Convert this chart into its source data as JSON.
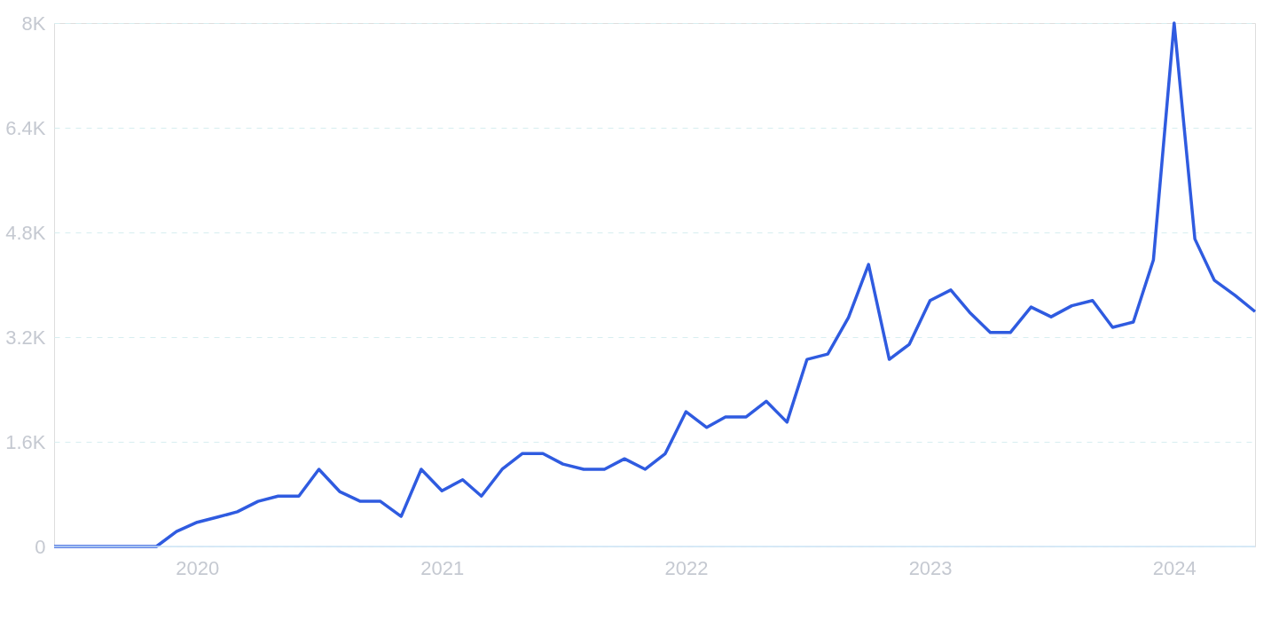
{
  "chart_data": {
    "type": "line",
    "x": [
      "2019-06",
      "2019-07",
      "2019-08",
      "2019-09",
      "2019-10",
      "2019-11",
      "2019-12",
      "2020-01",
      "2020-02",
      "2020-03",
      "2020-04",
      "2020-05",
      "2020-06",
      "2020-07",
      "2020-08",
      "2020-09",
      "2020-10",
      "2020-11",
      "2020-12",
      "2021-01",
      "2021-02",
      "2021-03",
      "2021-04",
      "2021-05",
      "2021-06",
      "2021-07",
      "2021-08",
      "2021-09",
      "2021-10",
      "2021-11",
      "2021-12",
      "2022-01",
      "2022-02",
      "2022-03",
      "2022-04",
      "2022-05",
      "2022-06",
      "2022-07",
      "2022-08",
      "2022-09",
      "2022-10",
      "2022-11",
      "2022-12",
      "2023-01",
      "2023-02",
      "2023-03",
      "2023-04",
      "2023-05",
      "2023-06",
      "2023-07",
      "2023-08",
      "2023-09",
      "2023-10",
      "2023-11",
      "2023-12",
      "2024-01",
      "2024-02",
      "2024-03",
      "2024-04",
      "2024-05"
    ],
    "series": [
      {
        "color": "#2f5be0",
        "values": [
          0,
          0,
          0,
          0,
          0,
          0,
          230,
          370,
          450,
          530,
          690,
          770,
          770,
          1180,
          840,
          690,
          690,
          460,
          1180,
          850,
          1020,
          770,
          1180,
          1420,
          1420,
          1260,
          1180,
          1180,
          1340,
          1180,
          1420,
          2060,
          1820,
          1980,
          1980,
          2220,
          1900,
          2860,
          2940,
          3500,
          4310,
          2860,
          3090,
          3760,
          3920,
          3580,
          3270,
          3270,
          3660,
          3510,
          3680,
          3760,
          3350,
          3430,
          4380,
          8000,
          4700,
          4070,
          3840,
          3590
        ]
      }
    ],
    "xlim": [
      "2019-06",
      "2024-05"
    ],
    "xticks": [
      "2020",
      "2021",
      "2022",
      "2023",
      "2024"
    ],
    "ylim": [
      0,
      8000
    ],
    "yticks": [
      0,
      {
        "value": 1600,
        "label": "1.6K"
      },
      {
        "value": 3200,
        "label": "3.2K"
      },
      {
        "value": 4800,
        "label": "4.8K"
      },
      {
        "value": 6400,
        "label": "6.4K"
      },
      {
        "value": 8000,
        "label": "8K"
      }
    ],
    "grid": "y",
    "marker": "none",
    "line_style": "solid"
  }
}
